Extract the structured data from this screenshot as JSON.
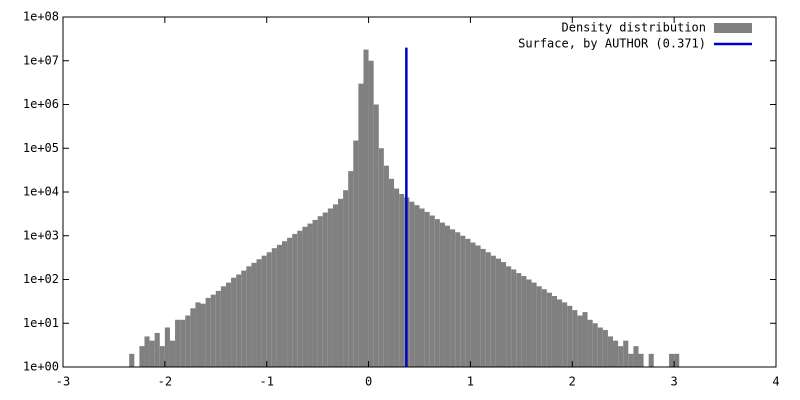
{
  "chart_data": {
    "type": "histogram",
    "bins": [
      -2.35,
      -2.3,
      -2.25,
      -2.2,
      -2.15,
      -2.1,
      -2.05,
      -2.0,
      -1.95,
      -1.9,
      -1.85,
      -1.8,
      -1.75,
      -1.7,
      -1.65,
      -1.6,
      -1.55,
      -1.5,
      -1.45,
      -1.4,
      -1.35,
      -1.3,
      -1.25,
      -1.2,
      -1.15,
      -1.1,
      -1.05,
      -1.0,
      -0.95,
      -0.9,
      -0.85,
      -0.8,
      -0.75,
      -0.7,
      -0.65,
      -0.6,
      -0.55,
      -0.5,
      -0.45,
      -0.4,
      -0.35,
      -0.3,
      -0.25,
      -0.2,
      -0.15,
      -0.1,
      -0.05,
      0.0,
      0.05,
      0.1,
      0.15,
      0.2,
      0.25,
      0.3,
      0.35,
      0.4,
      0.45,
      0.5,
      0.55,
      0.6,
      0.65,
      0.7,
      0.75,
      0.8,
      0.85,
      0.9,
      0.95,
      1.0,
      1.05,
      1.1,
      1.15,
      1.2,
      1.25,
      1.3,
      1.35,
      1.4,
      1.45,
      1.5,
      1.55,
      1.6,
      1.65,
      1.7,
      1.75,
      1.8,
      1.85,
      1.9,
      1.95,
      2.0,
      2.05,
      2.1,
      2.15,
      2.2,
      2.25,
      2.3,
      2.35,
      2.4,
      2.45,
      2.5,
      2.55,
      2.6,
      2.65,
      2.7,
      2.75,
      2.8,
      2.85,
      2.9,
      2.95,
      3.0,
      3.05
    ],
    "series": [
      {
        "name": "Density distribution",
        "color": "#808080",
        "values": [
          2,
          0,
          3,
          5,
          4,
          6,
          3,
          8,
          4,
          12,
          12,
          15,
          22,
          30,
          28,
          38,
          45,
          55,
          70,
          85,
          110,
          130,
          160,
          200,
          240,
          290,
          350,
          420,
          520,
          620,
          750,
          900,
          1100,
          1300,
          1600,
          1900,
          2300,
          2800,
          3400,
          4200,
          5200,
          7000,
          11000,
          30000,
          150000,
          3000000,
          18000000,
          10000000,
          1000000,
          100000,
          40000,
          20000,
          12000,
          9000,
          7500,
          6000,
          5000,
          4200,
          3500,
          2900,
          2400,
          2000,
          1700,
          1400,
          1200,
          1000,
          850,
          700,
          600,
          500,
          420,
          350,
          300,
          250,
          200,
          170,
          140,
          120,
          100,
          85,
          70,
          60,
          50,
          42,
          35,
          30,
          25,
          20,
          15,
          18,
          12,
          10,
          8,
          7,
          5,
          4,
          3,
          4,
          2,
          3,
          2,
          1,
          2,
          1,
          0,
          1,
          2,
          2
        ]
      }
    ],
    "reference_line": {
      "name": "Surface, by AUTHOR (0.371)",
      "color": "#0000cc",
      "x": 0.371,
      "y": [
        1,
        20000000
      ]
    },
    "xlim": [
      -3,
      4
    ],
    "xticks": [
      -3,
      -2,
      -1,
      0,
      1,
      2,
      3,
      4
    ],
    "ylim": [
      1,
      100000000
    ],
    "yticks": [
      {
        "value": 1,
        "label": "1e+00"
      },
      {
        "value": 10,
        "label": "1e+01"
      },
      {
        "value": 100,
        "label": "1e+02"
      },
      {
        "value": 1000,
        "label": "1e+03"
      },
      {
        "value": 10000,
        "label": "1e+04"
      },
      {
        "value": 100000,
        "label": "1e+05"
      },
      {
        "value": 1000000,
        "label": "1e+06"
      },
      {
        "value": 10000000,
        "label": "1e+07"
      },
      {
        "value": 100000000,
        "label": "1e+08"
      }
    ],
    "log_y": true,
    "legend": "top-right"
  }
}
